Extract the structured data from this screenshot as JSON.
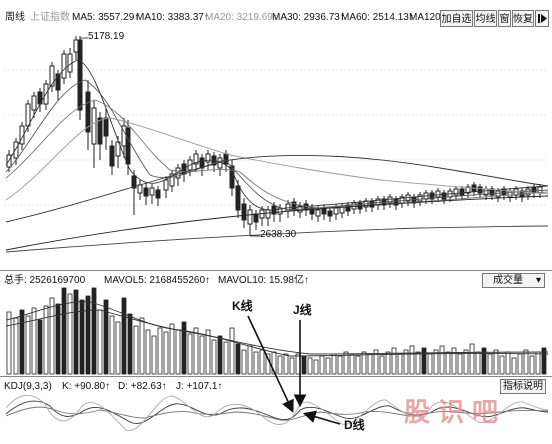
{
  "period_label": "周线",
  "index_name": "上证指数",
  "ma_legend": [
    {
      "text": "MA5: 3557.29↑"
    },
    {
      "text": "MA10: 3383.37↑"
    },
    {
      "text": "MA20: 3219.69↑"
    },
    {
      "text": "MA30: 2936.73↑"
    },
    {
      "text": "MA60: 2514.13↑"
    },
    {
      "text": "MA120"
    }
  ],
  "toolbar": {
    "add_watchlist": "加自选",
    "equal_line": "均线",
    "window": "窗",
    "restore": "恢复"
  },
  "price_annotations": {
    "high": "5178.19",
    "low": "2638.30"
  },
  "volume_bar": {
    "total_hands": "总手: 2526169700",
    "mavol5": "MAVOL5: 2168455260↑",
    "mavol10": "MAVOL10: 15.98亿↑",
    "indicator_select": "成交量",
    "dropdown_arrow": "▾"
  },
  "kdj_bar": {
    "title": "KDJ(9,3,3)",
    "k": "K: +90.80↑",
    "d": "D: +82.63↑",
    "j": "J: +107.1↑",
    "help_button": "指标说明"
  },
  "annotations": {
    "k_line": "K线",
    "j_line": "J线",
    "d_line": "D线"
  },
  "watermark": "股识吧",
  "colors": {
    "candle": "#222222",
    "grid": "#bbbbbb",
    "watermark": "#e08a8a"
  }
}
